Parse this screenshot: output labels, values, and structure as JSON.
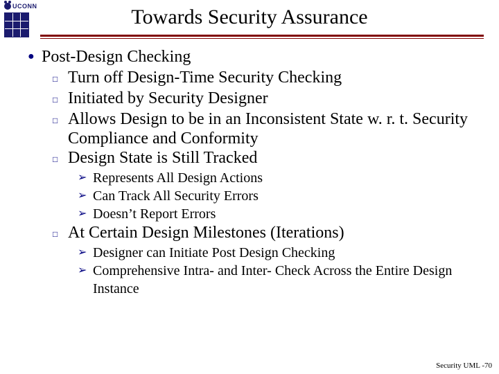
{
  "title": "Towards Security Assurance",
  "accent_color": "#800000",
  "bullet_color": "#000080",
  "logo_text": "UCONN",
  "footer": "Security UML -70",
  "l1": "Post-Design Checking",
  "l2a": "Turn off Design-Time Security Checking",
  "l2b": "Initiated by Security Designer",
  "l2c": "Allows Design to be in an Inconsistent State w. r. t. Security Compliance and Conformity",
  "l2d": "Design State is Still Tracked",
  "l3a": "Represents All Design Actions",
  "l3b": "Can Track All Security Errors",
  "l3c": "Doesn’t Report Errors",
  "l2e": "At Certain Design Milestones (Iterations)",
  "l3d": "Designer can Initiate Post Design Checking",
  "l3e": "Comprehensive Intra- and Inter- Check Across the Entire Design Instance",
  "glyph_circle": "●",
  "glyph_square": "□",
  "glyph_arrow": "➢"
}
